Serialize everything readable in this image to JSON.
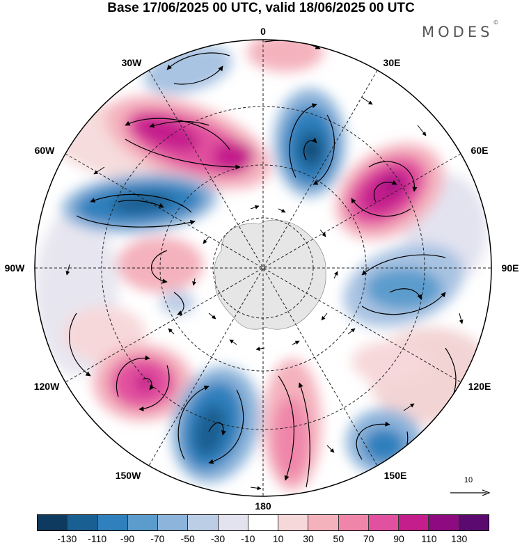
{
  "title": "Base 17/06/2025 00 UTC, valid 18/06/2025 00 UTC",
  "brand": "MODES",
  "brand_mark": "©",
  "map": {
    "projection": "south-polar-stereographic",
    "longitude_labels": [
      {
        "id": "lon-0",
        "text": "0"
      },
      {
        "id": "lon-30e",
        "text": "30E"
      },
      {
        "id": "lon-60e",
        "text": "60E"
      },
      {
        "id": "lon-90e",
        "text": "90E"
      },
      {
        "id": "lon-120e",
        "text": "120E"
      },
      {
        "id": "lon-150e",
        "text": "150E"
      },
      {
        "id": "lon-180",
        "text": "180"
      },
      {
        "id": "lon-150w",
        "text": "150W"
      },
      {
        "id": "lon-120w",
        "text": "120W"
      },
      {
        "id": "lon-90w",
        "text": "90W"
      },
      {
        "id": "lon-60w",
        "text": "60W"
      },
      {
        "id": "lon-30w",
        "text": "30W"
      }
    ],
    "reference_vector": "10",
    "land_color": "#e6e6e6",
    "graticule_color": "#222222"
  },
  "colorbar": {
    "colors": [
      "#0d3a5e",
      "#1a5f92",
      "#2f80bd",
      "#5b9ccd",
      "#8db4da",
      "#bccde6",
      "#e3e3f0",
      "#ffffff",
      "#f7d8da",
      "#f4b2bd",
      "#ef86aa",
      "#e2519f",
      "#c41e8c",
      "#8d0a80",
      "#5b0a70"
    ],
    "ticks": [
      "-130",
      "-110",
      "-90",
      "-70",
      "-50",
      "-30",
      "-10",
      "10",
      "30",
      "50",
      "70",
      "90",
      "110",
      "130"
    ]
  }
}
